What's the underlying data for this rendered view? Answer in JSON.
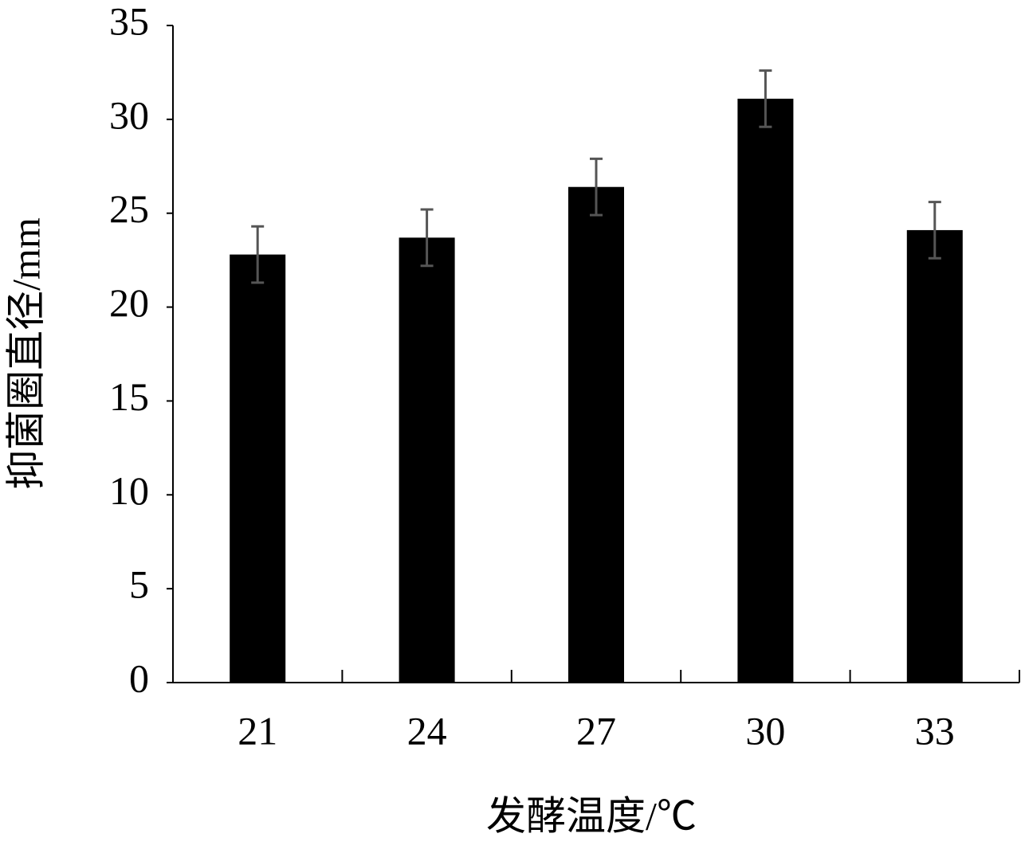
{
  "chart_data": {
    "type": "bar",
    "x_label": "发酵温度/℃",
    "y_label": "抑菌圈直径/mm",
    "categories": [
      "21",
      "24",
      "27",
      "30",
      "33"
    ],
    "series": [
      {
        "color": "#000000",
        "error_color": "#555555",
        "values": [
          22.8,
          23.7,
          26.4,
          31.1,
          24.1
        ],
        "errors": [
          1.5,
          1.5,
          1.5,
          1.5,
          1.5
        ]
      }
    ],
    "ylim": [
      0,
      35
    ],
    "yticks": [
      0,
      5,
      10,
      15,
      20,
      25,
      30,
      35
    ],
    "grid": false
  }
}
